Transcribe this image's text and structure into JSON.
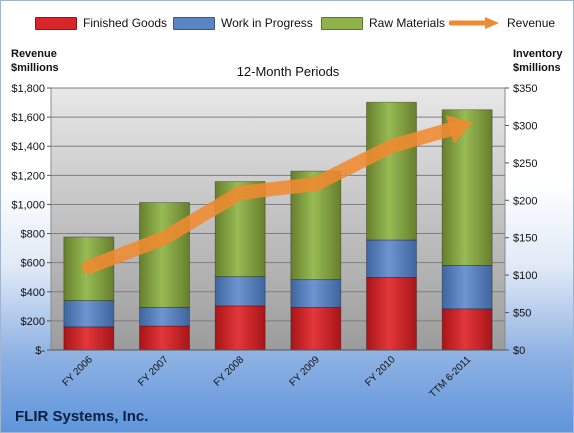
{
  "chart_data": {
    "type": "bar",
    "subtitle": "12-Month Periods",
    "company": "FLIR Systems, Inc.",
    "left_axis_title_line1": "Revenue",
    "left_axis_title_line2": "$millions",
    "right_axis_title_line1": "Inventory",
    "right_axis_title_line2": "$millions",
    "categories": [
      "FY 2006",
      "FY 2007",
      "FY 2008",
      "FY 2009",
      "FY 2010",
      "TTM 6-2011"
    ],
    "left_ylim": [
      0,
      1800
    ],
    "left_ticks": [
      "$-",
      "$200",
      "$400",
      "$600",
      "$800",
      "$1,000",
      "$1,200",
      "$1,400",
      "$1,600",
      "$1,800"
    ],
    "right_ylim": [
      0,
      350
    ],
    "right_ticks": [
      "$0",
      "$50",
      "$100",
      "$150",
      "$200",
      "$250",
      "$300",
      "$350"
    ],
    "grid": true,
    "legend_position": "top",
    "series": [
      {
        "name": "Finished Goods",
        "axis": "right",
        "kind": "stacked-bar",
        "color": "#d9262a",
        "values": [
          31,
          32,
          59,
          57,
          97,
          55
        ]
      },
      {
        "name": "Work in Progress",
        "axis": "right",
        "kind": "stacked-bar",
        "color": "#5b84c4",
        "values": [
          35,
          25,
          39,
          37,
          50,
          58
        ]
      },
      {
        "name": "Raw Materials",
        "axis": "right",
        "kind": "stacked-bar",
        "color": "#8fb24a",
        "values": [
          85,
          140,
          127,
          145,
          184,
          208
        ]
      },
      {
        "name": "Revenue",
        "axis": "left",
        "kind": "line-arrow",
        "color": "#f08a30",
        "values": [
          570,
          770,
          1080,
          1140,
          1400,
          1550
        ]
      }
    ]
  }
}
